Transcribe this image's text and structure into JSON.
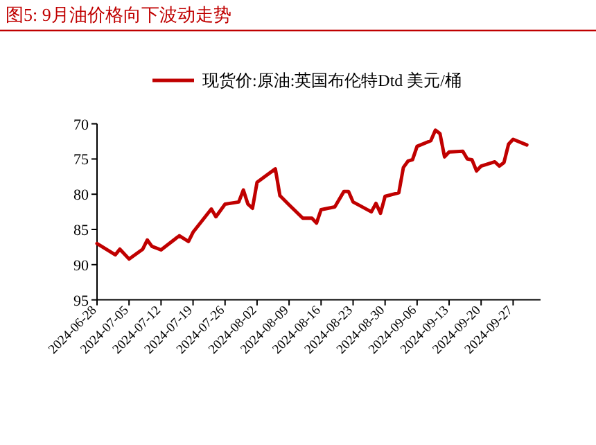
{
  "chart_data": {
    "type": "line",
    "title": "图5:  9月油价格向下波动走势",
    "x": [
      "2024-06-28",
      "2024-07-02",
      "2024-07-03",
      "2024-07-05",
      "2024-07-08",
      "2024-07-09",
      "2024-07-10",
      "2024-07-12",
      "2024-07-16",
      "2024-07-18",
      "2024-07-19",
      "2024-07-23",
      "2024-07-24",
      "2024-07-26",
      "2024-07-29",
      "2024-07-30",
      "2024-07-31",
      "2024-08-01",
      "2024-08-02",
      "2024-08-06",
      "2024-08-07",
      "2024-08-09",
      "2024-08-12",
      "2024-08-14",
      "2024-08-15",
      "2024-08-16",
      "2024-08-19",
      "2024-08-21",
      "2024-08-22",
      "2024-08-23",
      "2024-08-27",
      "2024-08-28",
      "2024-08-29",
      "2024-08-30",
      "2024-09-02",
      "2024-09-03",
      "2024-09-04",
      "2024-09-05",
      "2024-09-06",
      "2024-09-09",
      "2024-09-10",
      "2024-09-11",
      "2024-09-12",
      "2024-09-13",
      "2024-09-16",
      "2024-09-17",
      "2024-09-18",
      "2024-09-19",
      "2024-09-20",
      "2024-09-23",
      "2024-09-24",
      "2024-09-25",
      "2024-09-26",
      "2024-09-27",
      "2024-09-30"
    ],
    "series": [
      {
        "name": "现货价:原油:英国布伦特Dtd 美元/桶",
        "color": "#c00000",
        "values": [
          87.0,
          88.6,
          87.8,
          89.2,
          87.8,
          86.5,
          87.4,
          87.9,
          85.9,
          86.7,
          85.4,
          82.1,
          83.2,
          81.4,
          81.1,
          79.4,
          81.4,
          82.0,
          78.3,
          76.4,
          80.2,
          81.5,
          83.4,
          83.4,
          84.1,
          82.2,
          81.8,
          79.6,
          79.6,
          81.1,
          82.5,
          81.3,
          82.7,
          80.3,
          79.8,
          76.2,
          75.3,
          75.1,
          73.2,
          72.4,
          70.9,
          71.4,
          74.7,
          74.0,
          73.9,
          75.0,
          75.1,
          76.7,
          76.0,
          75.4,
          76.0,
          75.5,
          72.9,
          72.2,
          73.0
        ]
      }
    ],
    "xlim": [
      "2024-06-28",
      "2024-10-03"
    ],
    "xticks": [
      "2024-06-28",
      "2024-07-05",
      "2024-07-12",
      "2024-07-19",
      "2024-07-26",
      "2024-08-02",
      "2024-08-09",
      "2024-08-16",
      "2024-08-23",
      "2024-08-30",
      "2024-09-06",
      "2024-09-13",
      "2024-09-20",
      "2024-09-27"
    ],
    "ylim": [
      95,
      70
    ],
    "yticks": [
      70,
      75,
      80,
      85,
      90,
      95
    ],
    "legend": "top",
    "grid": false,
    "marker": "none",
    "line_style": "solid"
  }
}
